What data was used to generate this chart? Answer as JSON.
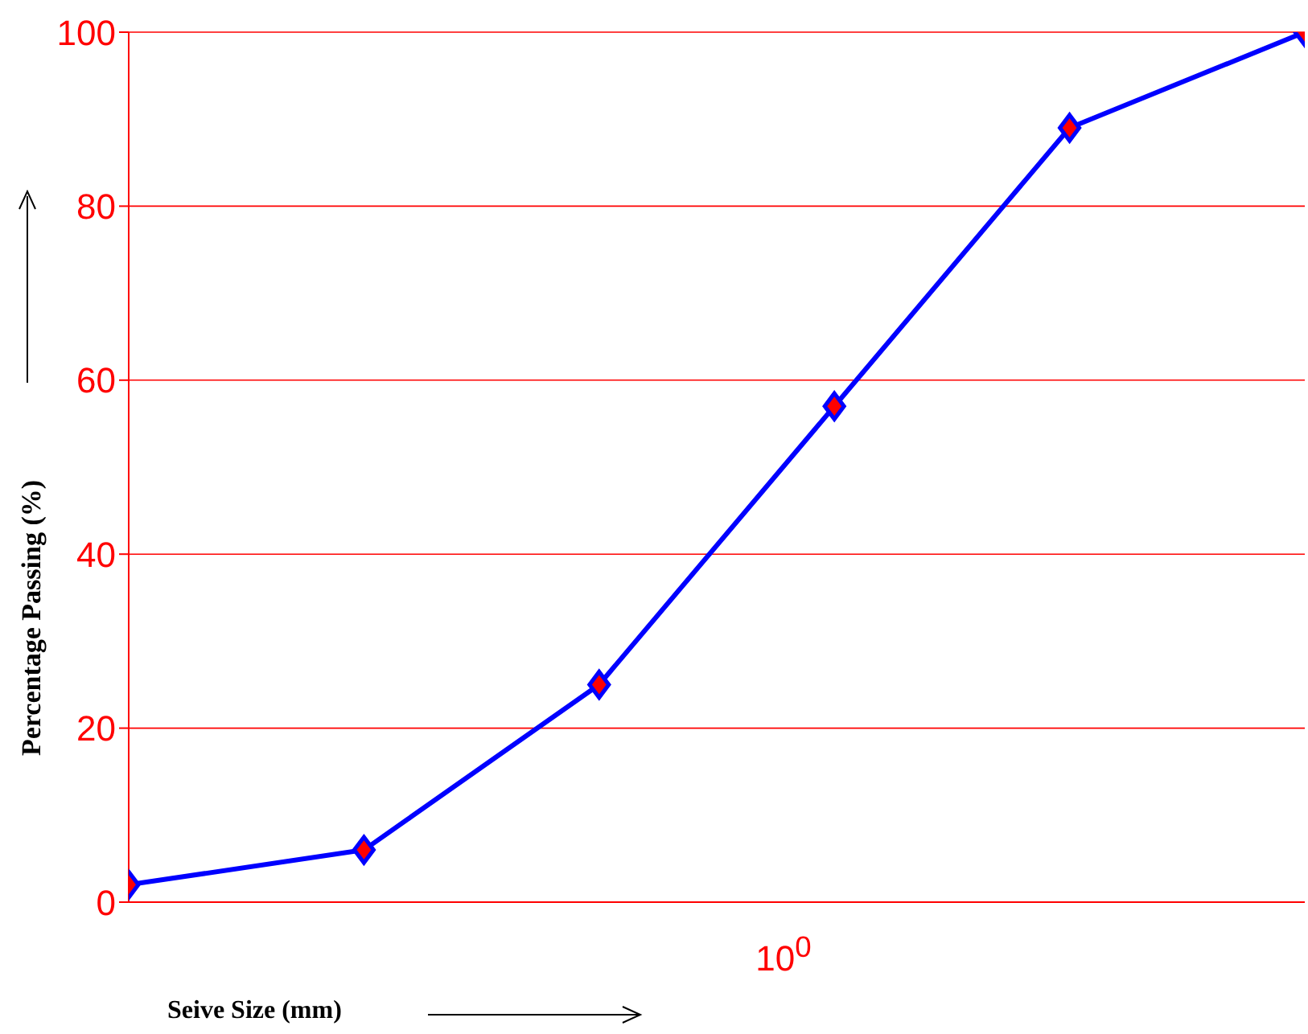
{
  "chart_data": {
    "type": "line",
    "xlabel": "Seive Size (mm)",
    "ylabel": "Percentage Passing (%)",
    "categories": [
      null,
      null,
      null,
      null,
      null,
      null
    ],
    "series": [
      {
        "color": "#0000ff",
        "values": [
          2,
          6,
          25,
          57,
          89,
          100
        ]
      }
    ],
    "annotations": [
      "10$^{0}$"
    ],
    "ylim": [
      0,
      100
    ],
    "yticks": [
      0,
      20,
      40,
      60,
      80,
      100
    ],
    "grid": "y",
    "marker": "diamond",
    "line_style": "solid"
  }
}
